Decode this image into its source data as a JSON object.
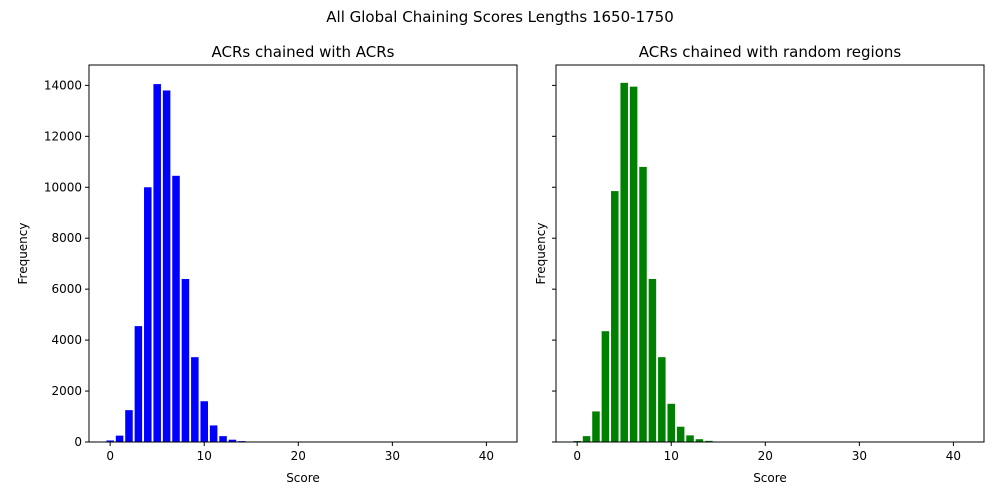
{
  "figure": {
    "suptitle": "All Global Chaining Scores Lengths 1650-1750"
  },
  "chart_data": [
    {
      "type": "bar",
      "title": "ACRs chained with ACRs",
      "xlabel": "Score",
      "ylabel": "Frequency",
      "color": "#0000ff",
      "xlim": [
        -2.25,
        43.25
      ],
      "ylim": [
        0,
        14800
      ],
      "xticks": [
        0,
        10,
        20,
        30,
        40
      ],
      "yticks": [
        0,
        2000,
        4000,
        6000,
        8000,
        10000,
        12000,
        14000
      ],
      "x": [
        0,
        1,
        2,
        3,
        4,
        5,
        6,
        7,
        8,
        9,
        10,
        11,
        12,
        13,
        14,
        15,
        16,
        17,
        18,
        19,
        20,
        21,
        22,
        23,
        24,
        25,
        26,
        27,
        28,
        29,
        30,
        31,
        32,
        33,
        34,
        35,
        36,
        37,
        38,
        39,
        40,
        41
      ],
      "values": [
        60,
        250,
        1250,
        4550,
        10000,
        14050,
        13800,
        10450,
        6400,
        3330,
        1600,
        650,
        230,
        90,
        35,
        15,
        5,
        2,
        1,
        0,
        0,
        0,
        0,
        0,
        0,
        0,
        0,
        0,
        0,
        0,
        0,
        0,
        0,
        0,
        0,
        0,
        0,
        0,
        0,
        0,
        0,
        0
      ]
    },
    {
      "type": "bar",
      "title": "ACRs chained with random regions",
      "xlabel": "Score",
      "ylabel": "Frequency",
      "color": "#008000",
      "xlim": [
        -2.25,
        43.25
      ],
      "ylim": [
        0,
        14800
      ],
      "xticks": [
        0,
        10,
        20,
        30,
        40
      ],
      "yticks": [
        0,
        2000,
        4000,
        6000,
        8000,
        10000,
        12000,
        14000
      ],
      "x": [
        0,
        1,
        2,
        3,
        4,
        5,
        6,
        7,
        8,
        9,
        10,
        11,
        12,
        13,
        14,
        15,
        16,
        17,
        18,
        19,
        20,
        21,
        22,
        23,
        24,
        25,
        26,
        27,
        28,
        29,
        30,
        31,
        32,
        33,
        34,
        35,
        36,
        37,
        38,
        39,
        40,
        41
      ],
      "values": [
        40,
        230,
        1200,
        4350,
        9850,
        14100,
        13950,
        10800,
        6400,
        3330,
        1500,
        600,
        260,
        110,
        45,
        15,
        5,
        2,
        1,
        0,
        0,
        0,
        0,
        0,
        0,
        0,
        0,
        0,
        0,
        0,
        0,
        0,
        0,
        0,
        0,
        0,
        0,
        0,
        0,
        0,
        0,
        0
      ]
    }
  ]
}
